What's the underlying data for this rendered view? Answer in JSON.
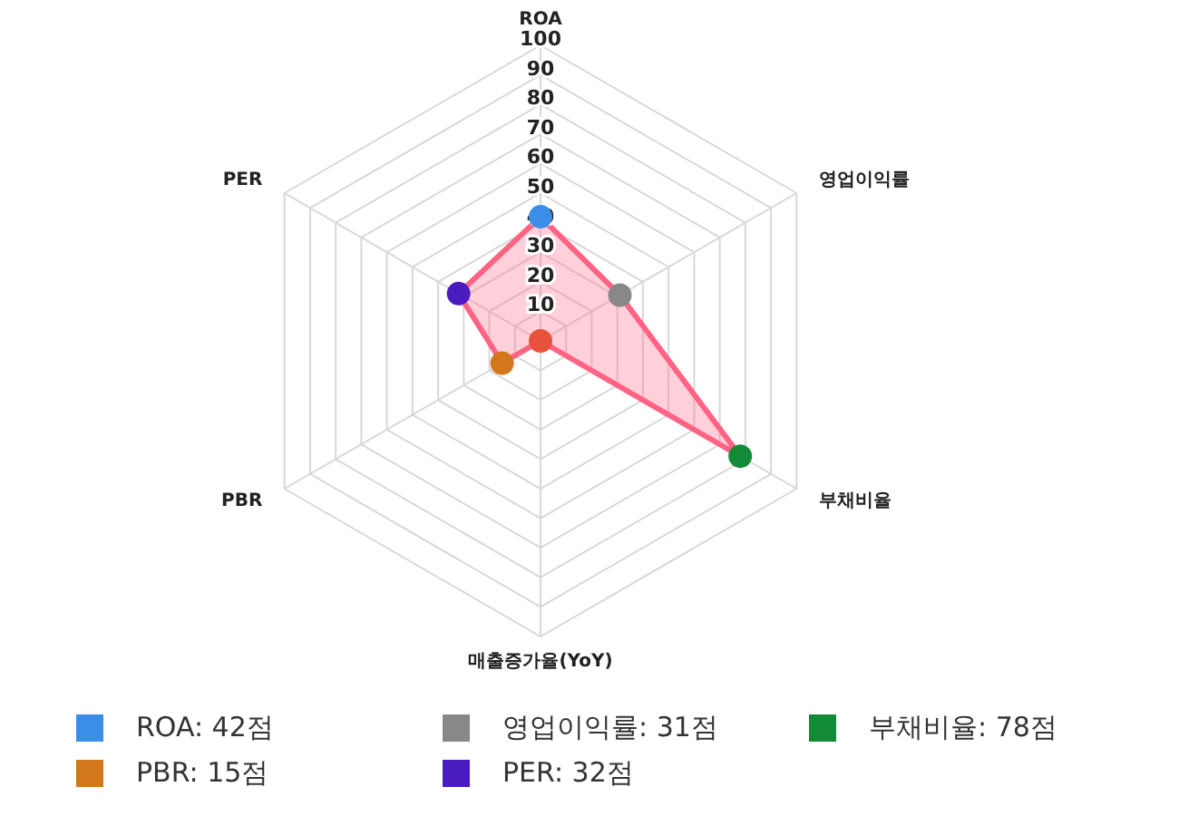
{
  "chart_data": {
    "type": "radar",
    "categories": [
      "ROA",
      "영업이익률",
      "부채비율",
      "매출증가율(YoY)",
      "PBR",
      "PER"
    ],
    "series": [
      {
        "color": "#ff6384",
        "values": [
          42,
          31,
          78,
          0,
          15,
          32
        ]
      }
    ],
    "colors": [
      "#3a8ee6",
      "#888888",
      "#138a36",
      "#e8523a",
      "#d2771c",
      "#4a1cc0"
    ],
    "value_labels": [
      "ROA: 42점",
      "영업이익률: 31점",
      "부채비율: 78점",
      null,
      "PBR: 15점",
      "PER: 32점"
    ],
    "ylim": [
      0,
      100
    ],
    "yticks": [
      10,
      20,
      30,
      40,
      50,
      60,
      70,
      80,
      90,
      100
    ],
    "grid": true,
    "marker": "circle"
  }
}
